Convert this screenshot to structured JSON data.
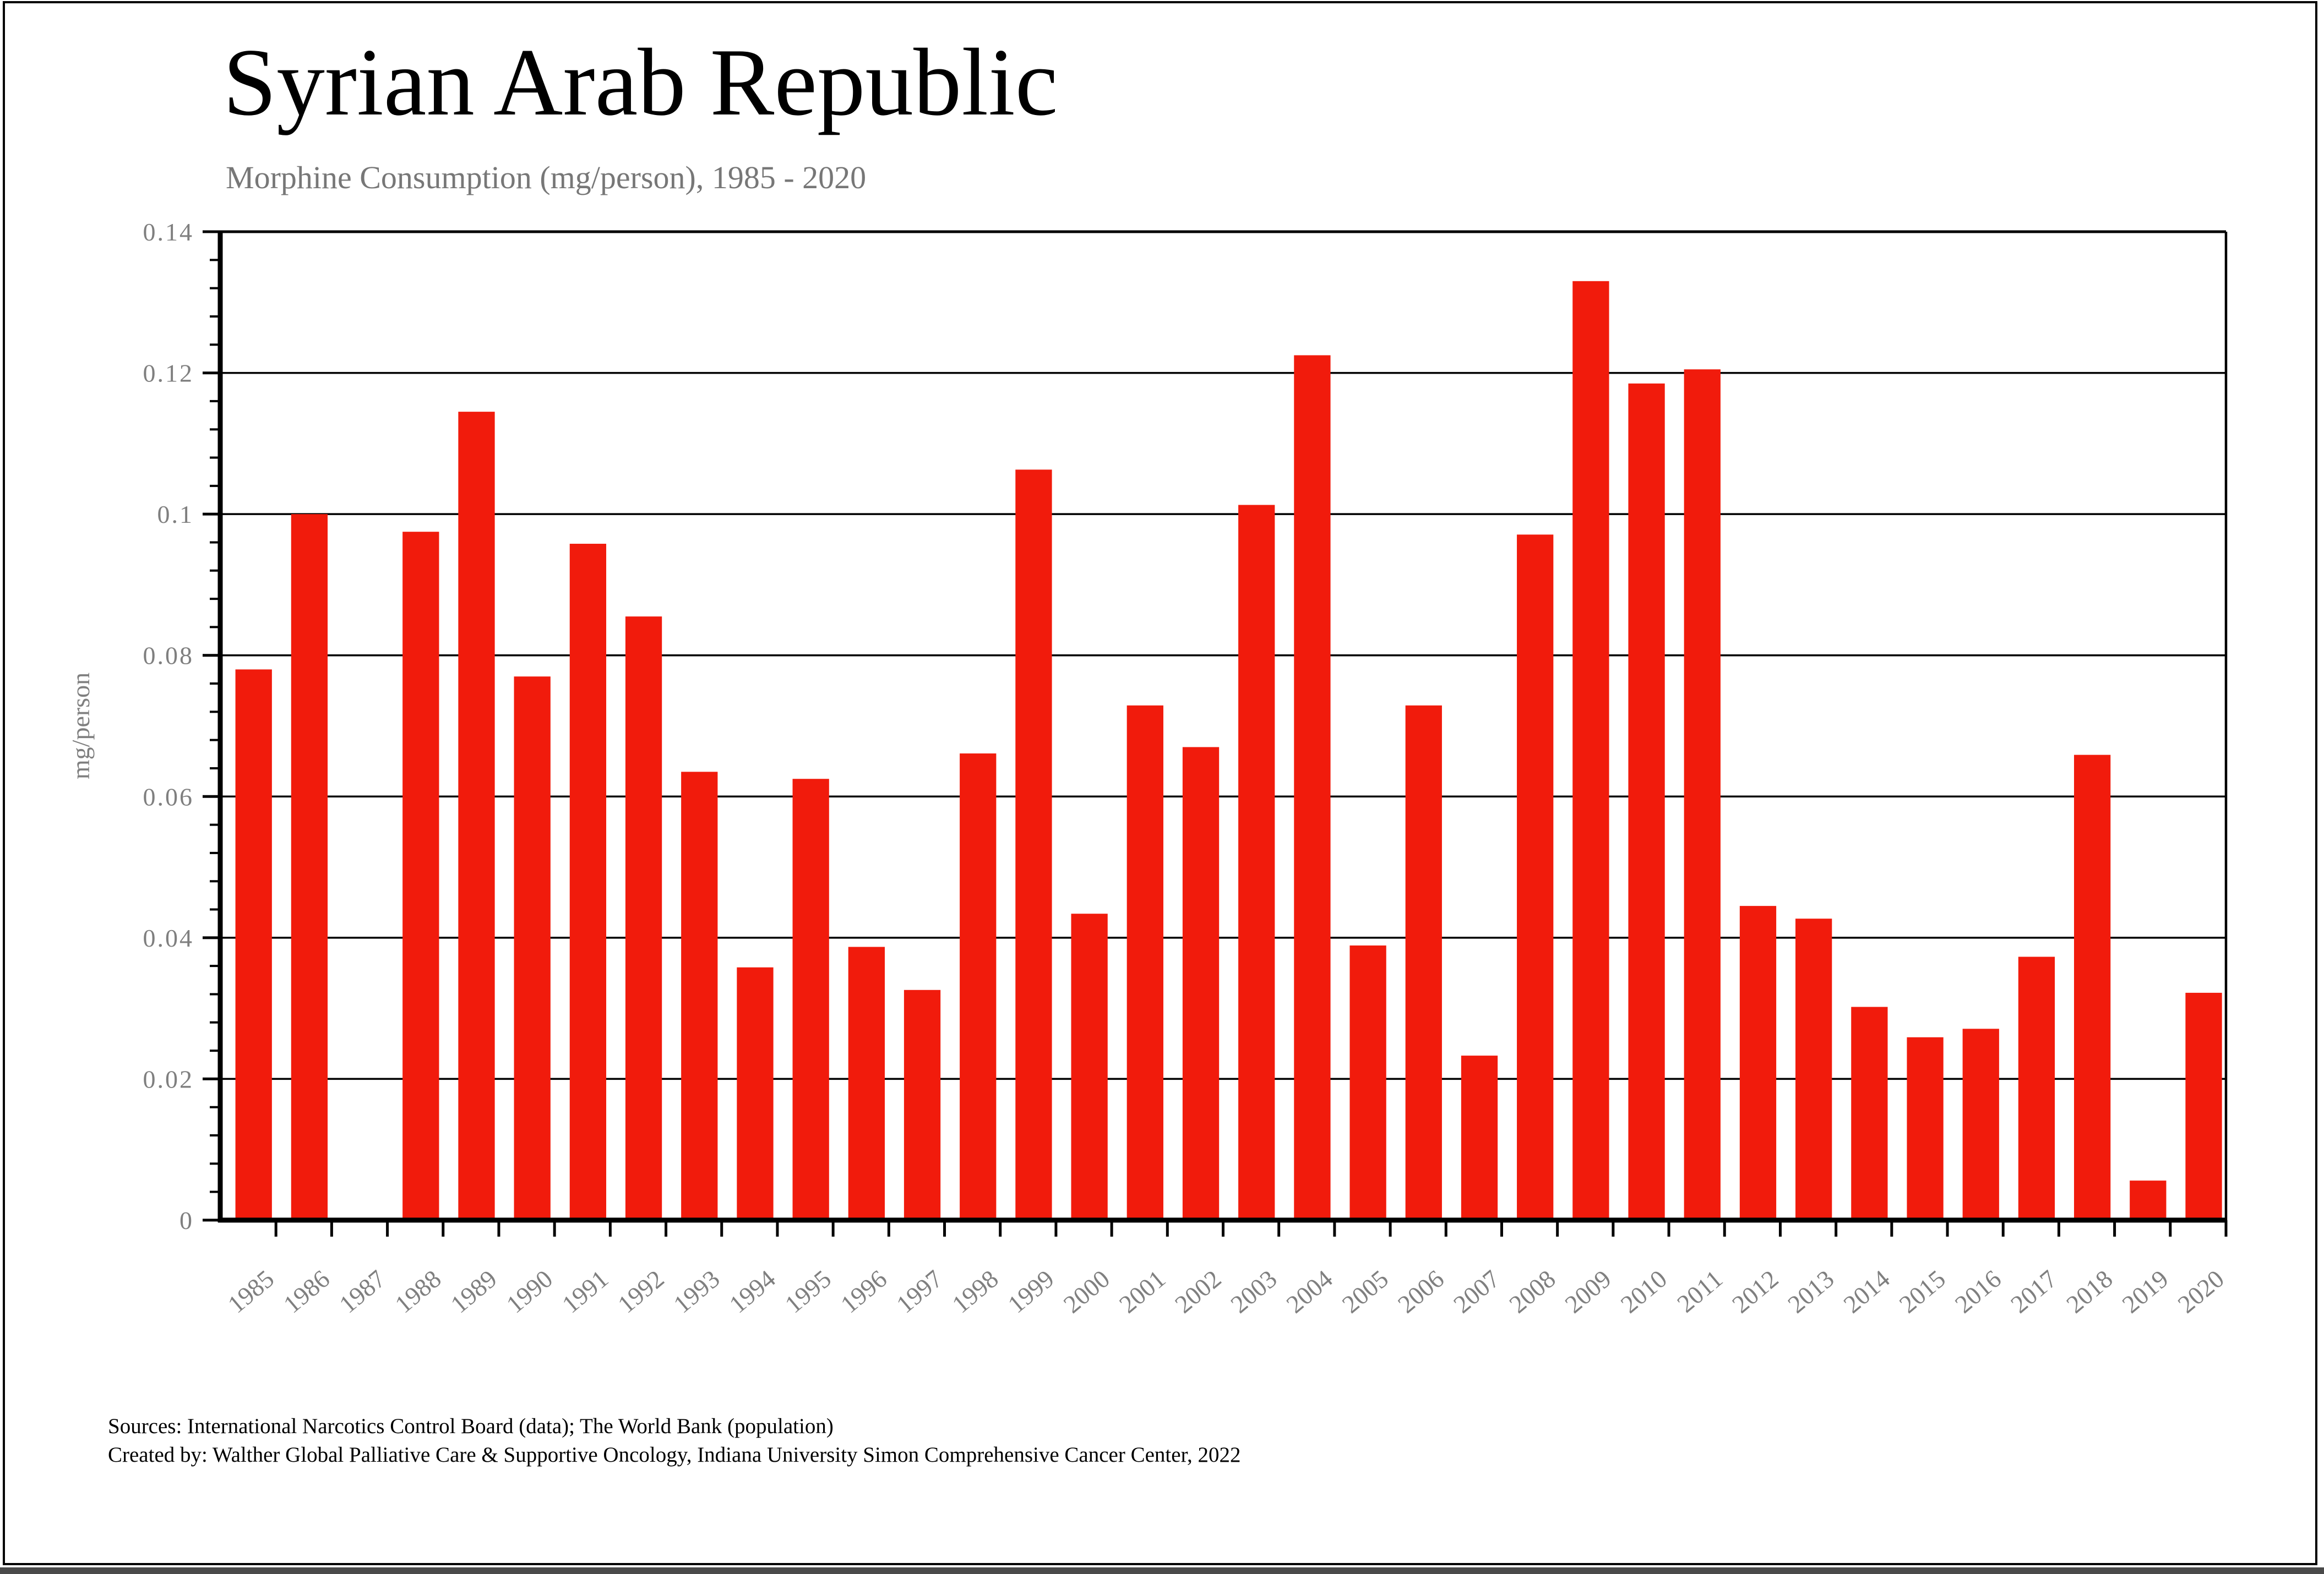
{
  "page": {
    "title": "Syrian Arab Republic",
    "subtitle": "Morphine Consumption (mg/person), 1985 - 2020",
    "source_line1": "Sources: International Narcotics Control Board (data); The World Bank (population)",
    "source_line2": "Created by: Walther  Global Palliative Care & Supportive Oncology, Indiana University Simon Comprehensive Cancer Center, 2022"
  },
  "chart_data": {
    "type": "bar",
    "title": "Syrian Arab Republic",
    "subtitle": "Morphine Consumption (mg/person), 1985 - 2020",
    "xlabel": "",
    "ylabel": "mg/person",
    "ylim": [
      0,
      0.14
    ],
    "ytick_step": 0.02,
    "yminortick_step": 0.004,
    "ytick_labels": [
      "0",
      "0.02",
      "0.04",
      "0.06",
      "0.08",
      "0.1",
      "0.12",
      "0.14"
    ],
    "grid": true,
    "legend": false,
    "bar_color": "#f11b0c",
    "axis_color": "#000000",
    "label_color": "#7f7f7f",
    "categories": [
      1985,
      1986,
      1987,
      1988,
      1989,
      1990,
      1991,
      1992,
      1993,
      1994,
      1995,
      1996,
      1997,
      1998,
      1999,
      2000,
      2001,
      2002,
      2003,
      2004,
      2005,
      2006,
      2007,
      2008,
      2009,
      2010,
      2011,
      2012,
      2013,
      2014,
      2015,
      2016,
      2017,
      2018,
      2019,
      2020
    ],
    "values": [
      0.078,
      0.1,
      0,
      0.0975,
      0.1145,
      0.077,
      0.0958,
      0.0855,
      0.0635,
      0.0358,
      0.0625,
      0.0387,
      0.0326,
      0.0661,
      0.1063,
      0.0434,
      0.0729,
      0.067,
      0.1013,
      0.1225,
      0.0389,
      0.0729,
      0.0233,
      0.0971,
      0.133,
      0.1185,
      0.1205,
      0.0445,
      0.0427,
      0.0302,
      0.0259,
      0.0271,
      0.0373,
      0.0659,
      0.0056,
      0.0322
    ]
  }
}
